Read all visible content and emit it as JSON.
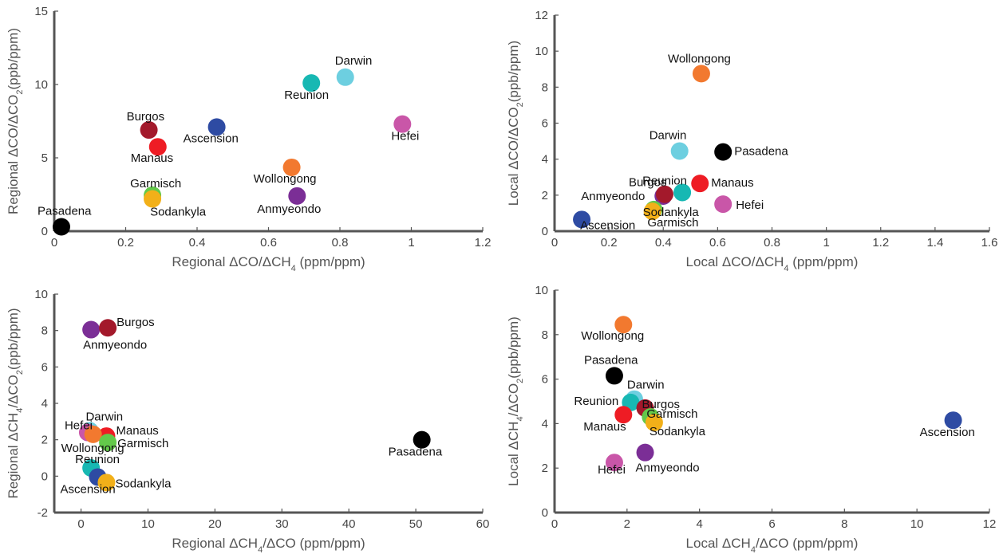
{
  "colors": {
    "Pasadena": "#000000",
    "Burgos": "#a3192b",
    "Manaus": "#ee1c24",
    "Ascension": "#2e4ba3",
    "Reunion": "#17b8b3",
    "Darwin": "#6dcfe0",
    "Hefei": "#c956a8",
    "Wollongong": "#f2792f",
    "Anmyeondo": "#7b2e96",
    "Garmisch": "#63c94a",
    "Sodankyla": "#f2b019"
  },
  "chart_data": [
    {
      "type": "scatter",
      "xlabel": {
        "pre": "Regional ΔCO/ΔCH",
        "sub": "4",
        "post": " (ppm/ppm)"
      },
      "ylabel": {
        "pre": "Regional ΔCO/ΔCO",
        "sub": "2",
        "post": "(ppb/ppm)"
      },
      "xlim": [
        0,
        1.2
      ],
      "ylim": [
        0,
        15
      ],
      "xticks": [
        0,
        0.2,
        0.4,
        0.6,
        0.8,
        1,
        1.2
      ],
      "yticks": [
        0,
        5,
        10,
        15
      ],
      "points": [
        {
          "name": "Pasadena",
          "x": 0.02,
          "y": 0.3,
          "label": "Pasadena"
        },
        {
          "name": "Burgos",
          "x": 0.265,
          "y": 6.9,
          "label": "Burgos"
        },
        {
          "name": "Manaus",
          "x": 0.29,
          "y": 5.75,
          "label": "Manaus"
        },
        {
          "name": "Ascension",
          "x": 0.455,
          "y": 7.1,
          "label": "Ascension"
        },
        {
          "name": "Reunion",
          "x": 0.72,
          "y": 10.1,
          "label": "Reunion"
        },
        {
          "name": "Darwin",
          "x": 0.815,
          "y": 10.5,
          "label": "Darwin"
        },
        {
          "name": "Hefei",
          "x": 0.975,
          "y": 7.3,
          "label": "Hefei"
        },
        {
          "name": "Wollongong",
          "x": 0.665,
          "y": 4.35,
          "label": "Wollongong"
        },
        {
          "name": "Anmyeondo",
          "x": 0.68,
          "y": 2.4,
          "label": "Anmyeondo"
        },
        {
          "name": "Garmisch",
          "x": 0.275,
          "y": 2.45,
          "label": "Garmisch"
        },
        {
          "name": "Sodankyla",
          "x": 0.275,
          "y": 2.2,
          "label": "Sodankyla"
        }
      ]
    },
    {
      "type": "scatter",
      "xlabel": {
        "pre": "Local ΔCO/ΔCH",
        "sub": "4",
        "post": " (ppm/ppm)"
      },
      "ylabel": {
        "pre": "Local ΔCO/ΔCO",
        "sub": "2",
        "post": "(ppb/ppm)"
      },
      "xlim": [
        0,
        1.6
      ],
      "ylim": [
        0,
        12
      ],
      "xticks": [
        0,
        0.2,
        0.4,
        0.6,
        0.8,
        1,
        1.2,
        1.4,
        1.6
      ],
      "yticks": [
        0,
        2,
        4,
        6,
        8,
        10,
        12
      ],
      "points": [
        {
          "name": "Wollongong",
          "x": 0.54,
          "y": 8.75,
          "label": "Wollongong"
        },
        {
          "name": "Darwin",
          "x": 0.46,
          "y": 4.45,
          "label": "Darwin"
        },
        {
          "name": "Pasadena",
          "x": 0.62,
          "y": 4.4,
          "label": "Pasadena"
        },
        {
          "name": "Anmyeondo",
          "x": 0.4,
          "y": 1.95,
          "label": "Anmyeondo"
        },
        {
          "name": "Burgos",
          "x": 0.405,
          "y": 2.05,
          "label": "Burgos"
        },
        {
          "name": "Reunion",
          "x": 0.47,
          "y": 2.15,
          "label": "Reunion"
        },
        {
          "name": "Manaus",
          "x": 0.535,
          "y": 2.65,
          "label": "Manaus"
        },
        {
          "name": "Hefei",
          "x": 0.62,
          "y": 1.5,
          "label": "Hefei"
        },
        {
          "name": "Garmisch",
          "x": 0.365,
          "y": 1.2,
          "label": "Garmisch"
        },
        {
          "name": "Sodankyla",
          "x": 0.36,
          "y": 1.1,
          "label": "Sodankyla"
        },
        {
          "name": "Ascension",
          "x": 0.1,
          "y": 0.65,
          "label": "Ascension"
        }
      ]
    },
    {
      "type": "scatter",
      "xlabel": {
        "pre": "Regional ΔCH",
        "sub": "4",
        "post": "/ΔCO (ppm/ppm)"
      },
      "ylabel": {
        "pre": "Regional ΔCH",
        "sub": "4",
        "mid": "/ΔCO",
        "sub2": "2",
        "post": "(ppb/ppm)"
      },
      "xlim": [
        -4,
        60
      ],
      "ylim": [
        -2,
        10
      ],
      "xticks": [
        0,
        10,
        20,
        30,
        40,
        50,
        60
      ],
      "yticks": [
        -2,
        0,
        2,
        4,
        6,
        8,
        10
      ],
      "points": [
        {
          "name": "Anmyeondo",
          "x": 1.5,
          "y": 8.05,
          "label": "Anmyeondo"
        },
        {
          "name": "Burgos",
          "x": 4.0,
          "y": 8.15,
          "label": "Burgos"
        },
        {
          "name": "Darwin",
          "x": 1.3,
          "y": 2.5,
          "label": "Darwin"
        },
        {
          "name": "Hefei",
          "x": 1.0,
          "y": 2.4,
          "label": "Hefei"
        },
        {
          "name": "Manaus",
          "x": 3.8,
          "y": 2.2,
          "label": "Manaus"
        },
        {
          "name": "Wollongong",
          "x": 1.8,
          "y": 2.3,
          "label": "Wollongong"
        },
        {
          "name": "Garmisch",
          "x": 4.0,
          "y": 1.85,
          "label": "Garmisch"
        },
        {
          "name": "Reunion",
          "x": 1.5,
          "y": 0.45,
          "label": "Reunion"
        },
        {
          "name": "Ascension",
          "x": 2.5,
          "y": -0.05,
          "label": "Ascension"
        },
        {
          "name": "Sodankyla",
          "x": 3.8,
          "y": -0.35,
          "label": "Sodankyla"
        },
        {
          "name": "Pasadena",
          "x": 50.9,
          "y": 2.0,
          "label": "Pasadena"
        }
      ]
    },
    {
      "type": "scatter",
      "xlabel": {
        "pre": "Local ΔCH",
        "sub": "4",
        "post": "/ΔCO (ppm/ppm)"
      },
      "ylabel": {
        "pre": "Local ΔCH",
        "sub": "4",
        "mid": "/ΔCO",
        "sub2": "2",
        "post": "(ppb/ppm)"
      },
      "xlim": [
        0,
        12
      ],
      "ylim": [
        0,
        10
      ],
      "xticks": [
        0,
        2,
        4,
        6,
        8,
        10,
        12
      ],
      "yticks": [
        0,
        2,
        4,
        6,
        8,
        10
      ],
      "points": [
        {
          "name": "Wollongong",
          "x": 1.9,
          "y": 8.45,
          "label": "Wollongong"
        },
        {
          "name": "Pasadena",
          "x": 1.65,
          "y": 6.15,
          "label": "Pasadena"
        },
        {
          "name": "Darwin",
          "x": 2.2,
          "y": 5.1,
          "label": "Darwin"
        },
        {
          "name": "Reunion",
          "x": 2.1,
          "y": 4.95,
          "label": "Reunion"
        },
        {
          "name": "Burgos",
          "x": 2.5,
          "y": 4.7,
          "label": "Burgos"
        },
        {
          "name": "Garmisch",
          "x": 2.65,
          "y": 4.3,
          "label": "Garmisch"
        },
        {
          "name": "Manaus",
          "x": 1.9,
          "y": 4.4,
          "label": "Manaus"
        },
        {
          "name": "Sodankyla",
          "x": 2.75,
          "y": 4.05,
          "label": "Sodankyla"
        },
        {
          "name": "Anmyeondo",
          "x": 2.5,
          "y": 2.7,
          "label": "Anmyeondo"
        },
        {
          "name": "Hefei",
          "x": 1.65,
          "y": 2.25,
          "label": "Hefei"
        },
        {
          "name": "Ascension",
          "x": 11.0,
          "y": 4.15,
          "label": "Ascension"
        }
      ]
    }
  ]
}
